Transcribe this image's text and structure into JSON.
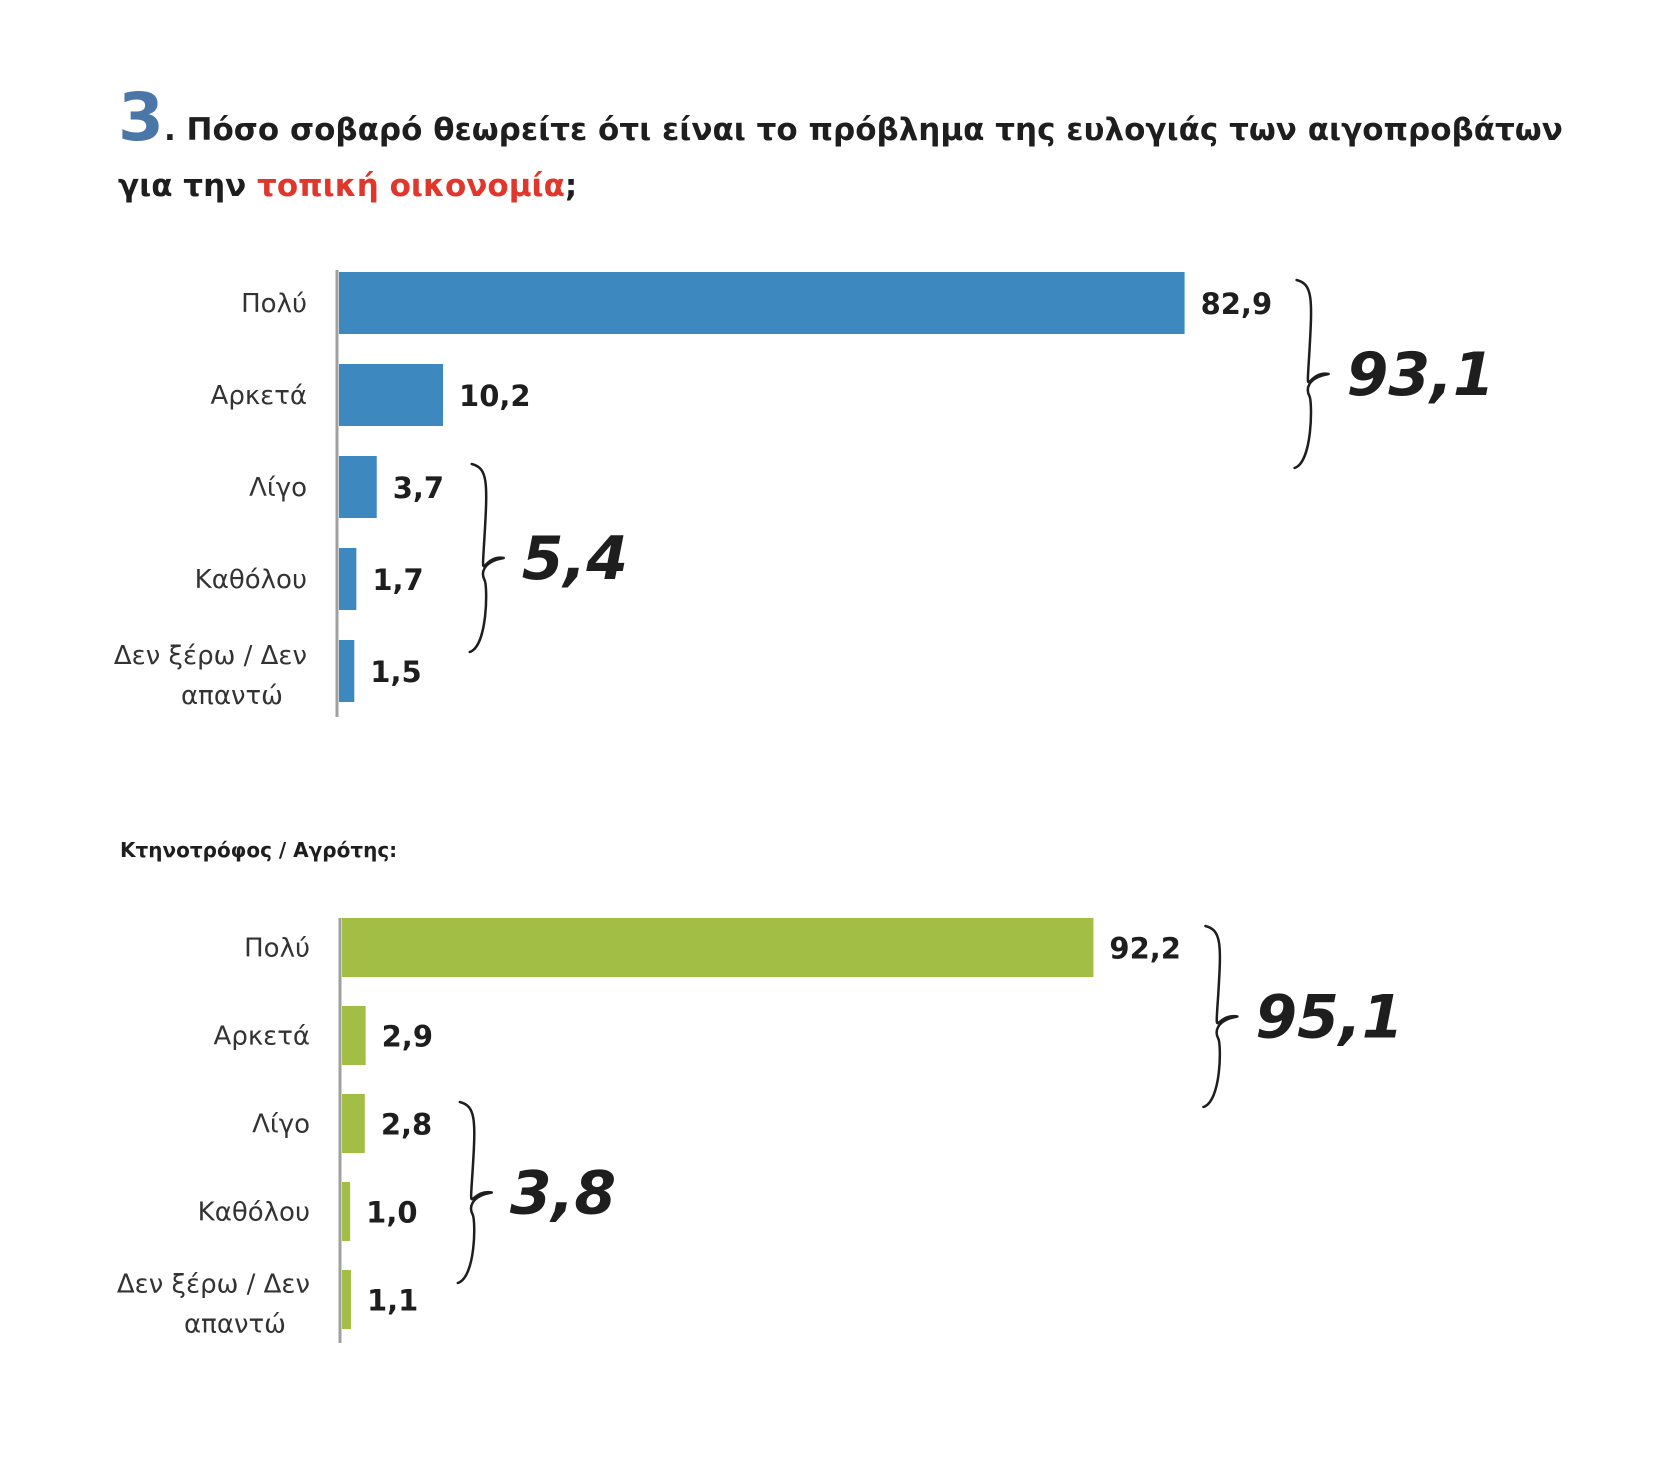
{
  "question": {
    "number": "3",
    "text_before": ". Πόσο σοβαρό θεωρείτε ότι είναι το πρόβλημα της ευλογιάς των αιγοπροβάτων για την ",
    "highlight": "τοπική οικονομία",
    "text_after": ";"
  },
  "subgroup_label": "Κτηνοτρόφος / Αγρότης:",
  "colors": {
    "bar_all": "#3d88bf",
    "bar_farmers": "#a3be45",
    "number": "#4a76a8",
    "highlight": "#e0362c"
  },
  "chart_data": [
    {
      "type": "bar",
      "orientation": "horizontal",
      "categories": [
        "Πολύ",
        "Αρκετά",
        "Λίγο",
        "Καθόλου",
        "Δεν ξέρω / Δεν απαντώ"
      ],
      "values": [
        82.9,
        10.2,
        3.7,
        1.7,
        1.5
      ],
      "value_labels": [
        "82,9",
        "10,2",
        "3,7",
        "1,7",
        "1,5"
      ],
      "groups": [
        {
          "label": "93,1",
          "from": 0,
          "to": 1
        },
        {
          "label": "5,4",
          "from": 2,
          "to": 3
        }
      ],
      "xlim": [
        0,
        100
      ]
    },
    {
      "type": "bar",
      "orientation": "horizontal",
      "title": "Κτηνοτρόφος / Αγρότης:",
      "categories": [
        "Πολύ",
        "Αρκετά",
        "Λίγο",
        "Καθόλου",
        "Δεν ξέρω / Δεν απαντώ"
      ],
      "values": [
        92.2,
        2.9,
        2.8,
        1.0,
        1.1
      ],
      "value_labels": [
        "92,2",
        "2,9",
        "2,8",
        "1,0",
        "1,1"
      ],
      "groups": [
        {
          "label": "95,1",
          "from": 0,
          "to": 1
        },
        {
          "label": "3,8",
          "from": 2,
          "to": 3
        }
      ],
      "xlim": [
        0,
        100
      ]
    }
  ]
}
